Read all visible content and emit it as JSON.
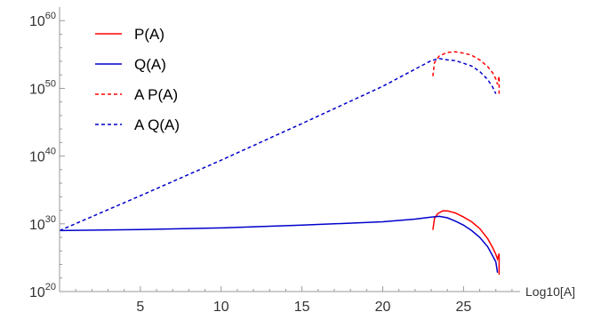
{
  "chart_data": {
    "type": "line",
    "title": "",
    "xlabel": "Log10[A]",
    "ylabel": "",
    "xlim": [
      0,
      28.5
    ],
    "ylim": [
      20,
      62
    ],
    "y_scale": "log",
    "x_ticks": [
      5,
      10,
      15,
      20,
      25
    ],
    "y_ticks": [
      20,
      30,
      40,
      50,
      60
    ],
    "y_tick_labels": [
      {
        "base": "10",
        "exp": "20"
      },
      {
        "base": "10",
        "exp": "30"
      },
      {
        "base": "10",
        "exp": "40"
      },
      {
        "base": "10",
        "exp": "50"
      },
      {
        "base": "10",
        "exp": "60"
      }
    ],
    "grid": false,
    "legend_position": "top-left",
    "series": [
      {
        "name": "P(A)",
        "color": "#ff0000",
        "dash": "solid",
        "x": [
          23.1,
          23.2,
          23.4,
          23.7,
          24.0,
          24.5,
          25.0,
          25.5,
          26.0,
          26.5,
          26.8,
          27.0,
          27.1,
          27.2,
          27.2
        ],
        "y": [
          29.1,
          30.8,
          31.5,
          31.9,
          31.9,
          31.6,
          31.0,
          30.3,
          29.3,
          27.8,
          26.5,
          25.5,
          24.8,
          25.6,
          22.5
        ]
      },
      {
        "name": "Q(A)",
        "color": "#0000cc",
        "dash": "solid",
        "x": [
          0,
          5,
          10,
          15,
          20,
          22,
          23,
          23.5,
          24,
          24.5,
          25,
          25.5,
          26,
          26.5,
          27.0,
          27.1
        ],
        "y": [
          29.0,
          29.15,
          29.4,
          29.8,
          30.3,
          30.7,
          31.0,
          31.1,
          30.9,
          30.4,
          29.8,
          29.0,
          28.0,
          26.6,
          24.4,
          22.8
        ]
      },
      {
        "name": "A P(A)",
        "color": "#ff0000",
        "dash": "dashed",
        "x": [
          23.1,
          23.2,
          23.5,
          24.0,
          24.5,
          25.0,
          25.5,
          26.0,
          26.5,
          26.8,
          27.0,
          27.1,
          27.2,
          27.2
        ],
        "y": [
          51.8,
          53.8,
          54.8,
          55.3,
          55.4,
          55.2,
          54.9,
          54.2,
          53.2,
          52.3,
          51.4,
          50.6,
          51.8,
          49.2
        ]
      },
      {
        "name": "A Q(A)",
        "color": "#0000cc",
        "dash": "dashed",
        "x": [
          0,
          5,
          10,
          15,
          20,
          23.0,
          23.5,
          24.0,
          24.5,
          25.0,
          25.5,
          26.0,
          26.5,
          26.8,
          27.0
        ],
        "y": [
          29.0,
          34.15,
          39.4,
          44.8,
          50.3,
          54.1,
          54.4,
          54.2,
          54.1,
          53.7,
          53.3,
          52.5,
          51.3,
          50.2,
          49.2
        ]
      }
    ]
  }
}
